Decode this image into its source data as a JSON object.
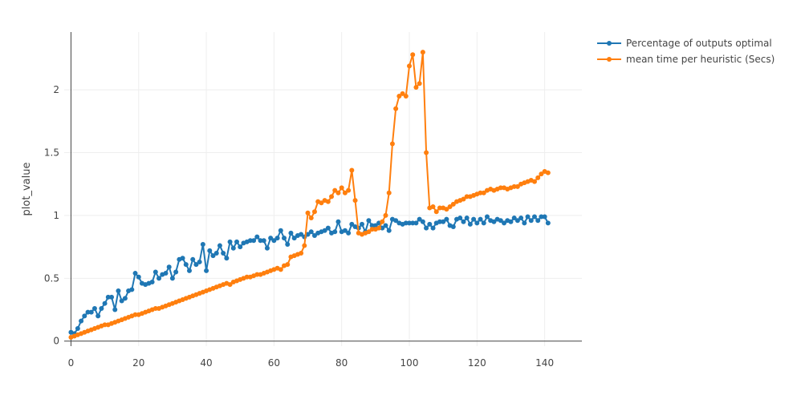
{
  "chart_data": {
    "type": "line",
    "title": "",
    "xlabel": "",
    "ylabel": "plot_value",
    "xlim": [
      -2,
      151
    ],
    "ylim": [
      -0.04,
      2.46
    ],
    "x_ticks": [
      0,
      20,
      40,
      60,
      80,
      100,
      120,
      140
    ],
    "x_tick_labels": [
      "0",
      "20",
      "40",
      "60",
      "80",
      "100",
      "120",
      "140"
    ],
    "y_ticks": [
      0,
      0.5,
      1,
      1.5,
      2
    ],
    "y_tick_labels": [
      "0",
      "0.5",
      "1",
      "1.5",
      "2"
    ],
    "grid": true,
    "legend_position": "top-right",
    "series": [
      {
        "name": "Percentage of outputs optimal",
        "color": "#1f77b4",
        "x": [
          0,
          1,
          2,
          3,
          4,
          5,
          6,
          7,
          8,
          9,
          10,
          11,
          12,
          13,
          14,
          15,
          16,
          17,
          18,
          19,
          20,
          21,
          22,
          23,
          24,
          25,
          26,
          27,
          28,
          29,
          30,
          31,
          32,
          33,
          34,
          35,
          36,
          37,
          38,
          39,
          40,
          41,
          42,
          43,
          44,
          45,
          46,
          47,
          48,
          49,
          50,
          51,
          52,
          53,
          54,
          55,
          56,
          57,
          58,
          59,
          60,
          61,
          62,
          63,
          64,
          65,
          66,
          67,
          68,
          69,
          70,
          71,
          72,
          73,
          74,
          75,
          76,
          77,
          78,
          79,
          80,
          81,
          82,
          83,
          84,
          85,
          86,
          87,
          88,
          89,
          90,
          91,
          92,
          93,
          94,
          95,
          96,
          97,
          98,
          99,
          100,
          101,
          102,
          103,
          104,
          105,
          106,
          107,
          108,
          109,
          110,
          111,
          112,
          113,
          114,
          115,
          116,
          117,
          118,
          119,
          120,
          121,
          122,
          123,
          124,
          125,
          126,
          127,
          128,
          129,
          130,
          131,
          132,
          133,
          134,
          135,
          136,
          137,
          138,
          139,
          140,
          141
        ],
        "y": [
          0.07,
          0.06,
          0.1,
          0.16,
          0.2,
          0.23,
          0.23,
          0.26,
          0.2,
          0.26,
          0.3,
          0.35,
          0.35,
          0.25,
          0.4,
          0.32,
          0.34,
          0.4,
          0.41,
          0.54,
          0.51,
          0.46,
          0.45,
          0.46,
          0.47,
          0.55,
          0.5,
          0.53,
          0.54,
          0.59,
          0.5,
          0.55,
          0.65,
          0.66,
          0.61,
          0.56,
          0.65,
          0.61,
          0.63,
          0.77,
          0.56,
          0.72,
          0.68,
          0.7,
          0.76,
          0.7,
          0.66,
          0.79,
          0.74,
          0.79,
          0.75,
          0.78,
          0.79,
          0.8,
          0.8,
          0.83,
          0.8,
          0.8,
          0.74,
          0.82,
          0.8,
          0.82,
          0.88,
          0.82,
          0.77,
          0.86,
          0.82,
          0.84,
          0.85,
          0.83,
          0.85,
          0.87,
          0.84,
          0.86,
          0.87,
          0.88,
          0.9,
          0.86,
          0.87,
          0.95,
          0.87,
          0.88,
          0.86,
          0.93,
          0.91,
          0.9,
          0.93,
          0.87,
          0.96,
          0.92,
          0.92,
          0.94,
          0.9,
          0.92,
          0.88,
          0.97,
          0.96,
          0.94,
          0.93,
          0.94,
          0.94,
          0.94,
          0.94,
          0.97,
          0.95,
          0.9,
          0.93,
          0.9,
          0.94,
          0.95,
          0.95,
          0.97,
          0.92,
          0.91,
          0.97,
          0.98,
          0.95,
          0.98,
          0.93,
          0.97,
          0.94,
          0.97,
          0.94,
          0.99,
          0.96,
          0.95,
          0.97,
          0.96,
          0.94,
          0.96,
          0.95,
          0.98,
          0.96,
          0.98,
          0.94,
          0.99,
          0.96,
          0.99,
          0.96,
          0.99,
          0.99,
          0.94
        ]
      },
      {
        "name": "mean time per heuristic (Secs)",
        "color": "#ff7f0e",
        "x": [
          0,
          1,
          2,
          3,
          4,
          5,
          6,
          7,
          8,
          9,
          10,
          11,
          12,
          13,
          14,
          15,
          16,
          17,
          18,
          19,
          20,
          21,
          22,
          23,
          24,
          25,
          26,
          27,
          28,
          29,
          30,
          31,
          32,
          33,
          34,
          35,
          36,
          37,
          38,
          39,
          40,
          41,
          42,
          43,
          44,
          45,
          46,
          47,
          48,
          49,
          50,
          51,
          52,
          53,
          54,
          55,
          56,
          57,
          58,
          59,
          60,
          61,
          62,
          63,
          64,
          65,
          66,
          67,
          68,
          69,
          70,
          71,
          72,
          73,
          74,
          75,
          76,
          77,
          78,
          79,
          80,
          81,
          82,
          83,
          84,
          85,
          86,
          87,
          88,
          89,
          90,
          91,
          92,
          93,
          94,
          95,
          96,
          97,
          98,
          99,
          100,
          101,
          102,
          103,
          104,
          105,
          106,
          107,
          108,
          109,
          110,
          111,
          112,
          113,
          114,
          115,
          116,
          117,
          118,
          119,
          120,
          121,
          122,
          123,
          124,
          125,
          126,
          127,
          128,
          129,
          130,
          131,
          132,
          133,
          134,
          135,
          136,
          137,
          138,
          139,
          140,
          141
        ],
        "y": [
          0.03,
          0.04,
          0.05,
          0.06,
          0.07,
          0.08,
          0.09,
          0.1,
          0.11,
          0.12,
          0.13,
          0.13,
          0.14,
          0.15,
          0.16,
          0.17,
          0.18,
          0.19,
          0.2,
          0.21,
          0.21,
          0.22,
          0.23,
          0.24,
          0.25,
          0.26,
          0.26,
          0.27,
          0.28,
          0.29,
          0.3,
          0.31,
          0.32,
          0.33,
          0.34,
          0.35,
          0.36,
          0.37,
          0.38,
          0.39,
          0.4,
          0.41,
          0.42,
          0.43,
          0.44,
          0.45,
          0.46,
          0.45,
          0.47,
          0.48,
          0.49,
          0.5,
          0.51,
          0.51,
          0.52,
          0.53,
          0.53,
          0.54,
          0.55,
          0.56,
          0.57,
          0.58,
          0.57,
          0.6,
          0.61,
          0.67,
          0.68,
          0.69,
          0.7,
          0.76,
          1.02,
          0.98,
          1.03,
          1.11,
          1.1,
          1.12,
          1.11,
          1.15,
          1.2,
          1.18,
          1.22,
          1.18,
          1.2,
          1.36,
          1.12,
          0.86,
          0.85,
          0.86,
          0.87,
          0.89,
          0.89,
          0.9,
          0.95,
          1.0,
          1.18,
          1.57,
          1.85,
          1.95,
          1.97,
          1.95,
          2.19,
          2.28,
          2.02,
          2.05,
          2.3,
          1.5,
          1.06,
          1.07,
          1.03,
          1.06,
          1.06,
          1.05,
          1.07,
          1.09,
          1.11,
          1.12,
          1.13,
          1.15,
          1.15,
          1.16,
          1.17,
          1.18,
          1.18,
          1.2,
          1.21,
          1.2,
          1.21,
          1.22,
          1.22,
          1.21,
          1.22,
          1.23,
          1.23,
          1.25,
          1.26,
          1.27,
          1.28,
          1.27,
          1.3,
          1.33,
          1.35,
          1.34
        ]
      }
    ]
  }
}
